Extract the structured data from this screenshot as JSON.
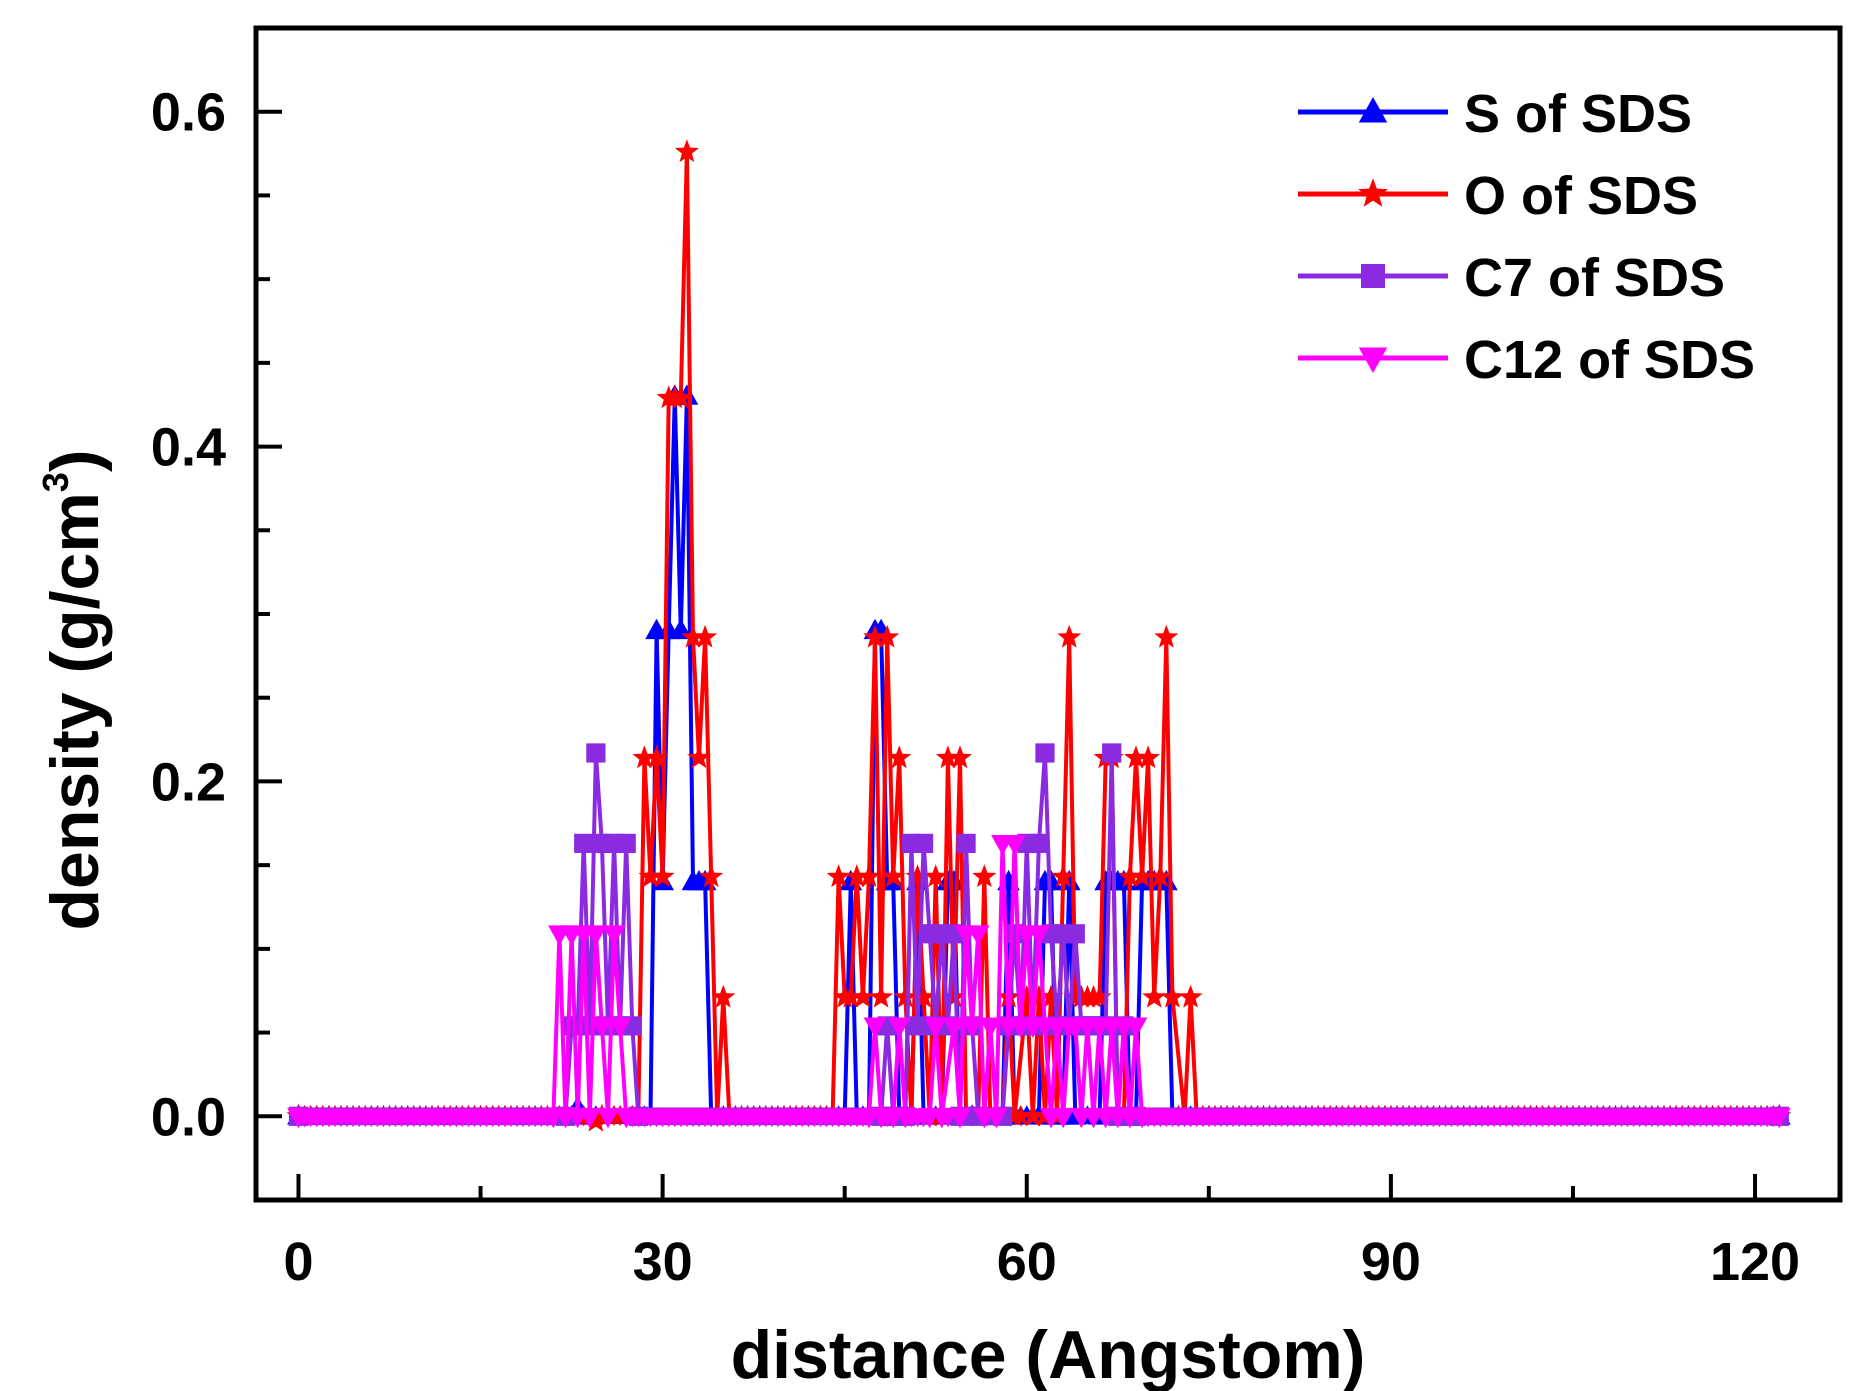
{
  "chart_data": {
    "type": "line",
    "title": "",
    "xlabel": "distance (Angstom)",
    "ylabel": {
      "main": "density (g/cm",
      "superscript": "3",
      "close": ")"
    },
    "xlim": [
      -3.5,
      127
    ],
    "ylim": [
      -0.05,
      0.65
    ],
    "xticks": [
      0,
      30,
      60,
      90,
      120
    ],
    "xtick_labels": [
      "0",
      "30",
      "60",
      "90",
      "120"
    ],
    "yticks": [
      0.0,
      0.2,
      0.4,
      0.6
    ],
    "ytick_labels": [
      "0.0",
      "0.2",
      "0.4",
      "0.6"
    ],
    "legend_position": "top-right",
    "series": [
      {
        "name": "S of SDS",
        "color": "#0000ff",
        "marker": "triangle-up",
        "points": [
          [
            0,
            0
          ],
          [
            22,
            0
          ],
          [
            23,
            0.005
          ],
          [
            24,
            0
          ],
          [
            29,
            0
          ],
          [
            29.5,
            0.29
          ],
          [
            30,
            0.14
          ],
          [
            30.5,
            0.29
          ],
          [
            31,
            0.43
          ],
          [
            31.5,
            0.29
          ],
          [
            32,
            0.43
          ],
          [
            32.5,
            0.14
          ],
          [
            33,
            0.14
          ],
          [
            33.5,
            0.14
          ],
          [
            34,
            0
          ],
          [
            45,
            0
          ],
          [
            45.5,
            0.14
          ],
          [
            46,
            0
          ],
          [
            47,
            0
          ],
          [
            47.5,
            0.29
          ],
          [
            48,
            0.29
          ],
          [
            48.5,
            0.14
          ],
          [
            49,
            0.14
          ],
          [
            49.5,
            0
          ],
          [
            50.5,
            0
          ],
          [
            51,
            0.14
          ],
          [
            51.5,
            0
          ],
          [
            53,
            0
          ],
          [
            53.5,
            0.14
          ],
          [
            54,
            0.14
          ],
          [
            54.5,
            0
          ],
          [
            55,
            0
          ],
          [
            55.5,
            0
          ],
          [
            56,
            0
          ],
          [
            58,
            0
          ],
          [
            58.5,
            0.14
          ],
          [
            59,
            0
          ],
          [
            61,
            0
          ],
          [
            61.5,
            0.14
          ],
          [
            62,
            0.14
          ],
          [
            62.5,
            0
          ],
          [
            63,
            0
          ],
          [
            63.5,
            0.14
          ],
          [
            64,
            0
          ],
          [
            66,
            0
          ],
          [
            66.5,
            0.14
          ],
          [
            67,
            0.14
          ],
          [
            67.5,
            0.14
          ],
          [
            68,
            0.14
          ],
          [
            68.5,
            0
          ],
          [
            69,
            0
          ],
          [
            69.5,
            0.14
          ],
          [
            70,
            0.14
          ],
          [
            70.5,
            0.14
          ],
          [
            71,
            0.14
          ],
          [
            71.5,
            0.14
          ],
          [
            72,
            0
          ],
          [
            122,
            0
          ]
        ]
      },
      {
        "name": "O of SDS",
        "color": "#ff0000",
        "marker": "star",
        "points": [
          [
            0,
            0
          ],
          [
            24,
            0
          ],
          [
            24.5,
            -0.003
          ],
          [
            25,
            0
          ],
          [
            28,
            0
          ],
          [
            28.5,
            0.214
          ],
          [
            29,
            0.143
          ],
          [
            29.5,
            0.214
          ],
          [
            30,
            0.143
          ],
          [
            30.5,
            0.429
          ],
          [
            31,
            0.429
          ],
          [
            31.5,
            0.429
          ],
          [
            32,
            0.576
          ],
          [
            32.5,
            0.286
          ],
          [
            33,
            0.214
          ],
          [
            33.5,
            0.286
          ],
          [
            34,
            0.143
          ],
          [
            34.5,
            0
          ],
          [
            35,
            0.071
          ],
          [
            35.5,
            0
          ],
          [
            44,
            0
          ],
          [
            44.5,
            0.143
          ],
          [
            45,
            0.071
          ],
          [
            45.5,
            0.071
          ],
          [
            46,
            0.143
          ],
          [
            46.5,
            0.071
          ],
          [
            47,
            0.143
          ],
          [
            47.5,
            0.286
          ],
          [
            48,
            0.071
          ],
          [
            48.5,
            0.286
          ],
          [
            49,
            0.143
          ],
          [
            49.5,
            0.214
          ],
          [
            50,
            0.071
          ],
          [
            50.5,
            0
          ],
          [
            51,
            0.143
          ],
          [
            51.5,
            0.071
          ],
          [
            52,
            0
          ],
          [
            52.5,
            0.143
          ],
          [
            53,
            0
          ],
          [
            53.5,
            0.214
          ],
          [
            54,
            0.071
          ],
          [
            54.5,
            0.214
          ],
          [
            55,
            0
          ],
          [
            56,
            0
          ],
          [
            56.5,
            0.143
          ],
          [
            57,
            0
          ],
          [
            58,
            0
          ],
          [
            58.5,
            0.071
          ],
          [
            59,
            0
          ],
          [
            60,
            0.071
          ],
          [
            60.5,
            0
          ],
          [
            61,
            0.071
          ],
          [
            61.5,
            0
          ],
          [
            62,
            0.071
          ],
          [
            62.5,
            0
          ],
          [
            63,
            0.143
          ],
          [
            63.5,
            0.286
          ],
          [
            64,
            0.071
          ],
          [
            64.5,
            0.071
          ],
          [
            65,
            0.071
          ],
          [
            65.5,
            0.071
          ],
          [
            66,
            0.071
          ],
          [
            66.5,
            0.214
          ],
          [
            67,
            0.214
          ],
          [
            67.5,
            0
          ],
          [
            68,
            0
          ],
          [
            68.5,
            0.143
          ],
          [
            69,
            0.214
          ],
          [
            69.5,
            0.143
          ],
          [
            70,
            0.214
          ],
          [
            70.5,
            0.071
          ],
          [
            71,
            0.143
          ],
          [
            71.5,
            0.286
          ],
          [
            72,
            0.071
          ],
          [
            73,
            0
          ],
          [
            73.5,
            0.071
          ],
          [
            74,
            0
          ],
          [
            122,
            0
          ]
        ]
      },
      {
        "name": "C7 of SDS",
        "color": "#8a2be2",
        "marker": "square",
        "points": [
          [
            0,
            0
          ],
          [
            22,
            0
          ],
          [
            22.5,
            0.054
          ],
          [
            23,
            0.054
          ],
          [
            23.5,
            0.163
          ],
          [
            24,
            0.054
          ],
          [
            24.5,
            0.217
          ],
          [
            25,
            0.163
          ],
          [
            25.5,
            0.054
          ],
          [
            26,
            0.163
          ],
          [
            26.5,
            0.054
          ],
          [
            27,
            0.163
          ],
          [
            27.5,
            0.054
          ],
          [
            28,
            0
          ],
          [
            48,
            0
          ],
          [
            48.5,
            0.054
          ],
          [
            49,
            0
          ],
          [
            50,
            0
          ],
          [
            50.5,
            0.163
          ],
          [
            51,
            0.054
          ],
          [
            51.5,
            0.163
          ],
          [
            52,
            0.109
          ],
          [
            52.5,
            0.054
          ],
          [
            53,
            0.109
          ],
          [
            53.5,
            0.054
          ],
          [
            54,
            0.109
          ],
          [
            54.5,
            0
          ],
          [
            55,
            0.163
          ],
          [
            55.5,
            0.054
          ],
          [
            56,
            0
          ],
          [
            58,
            0
          ],
          [
            58.5,
            0.054
          ],
          [
            59,
            0.109
          ],
          [
            59.5,
            0.054
          ],
          [
            60,
            0.163
          ],
          [
            60.5,
            0.054
          ],
          [
            61,
            0.163
          ],
          [
            61.5,
            0.217
          ],
          [
            62,
            0.109
          ],
          [
            62.5,
            0.054
          ],
          [
            63,
            0.109
          ],
          [
            63.5,
            0.054
          ],
          [
            64,
            0.109
          ],
          [
            64.5,
            0.054
          ],
          [
            65,
            0.054
          ],
          [
            65.5,
            0.054
          ],
          [
            66,
            0.054
          ],
          [
            66.5,
            0.054
          ],
          [
            67,
            0.217
          ],
          [
            67.5,
            0
          ],
          [
            68,
            0.054
          ],
          [
            68.5,
            0
          ],
          [
            69,
            0
          ],
          [
            122,
            0
          ]
        ]
      },
      {
        "name": "C12 of SDS",
        "color": "#ff00ff",
        "marker": "triangle-down",
        "points": [
          [
            0,
            0
          ],
          [
            21,
            0
          ],
          [
            21.5,
            0.109
          ],
          [
            22,
            0
          ],
          [
            22.5,
            0.109
          ],
          [
            23,
            0
          ],
          [
            23.5,
            0.109
          ],
          [
            24,
            0
          ],
          [
            24.5,
            0.109
          ],
          [
            25,
            0.054
          ],
          [
            25.5,
            0
          ],
          [
            26,
            0.109
          ],
          [
            26.5,
            0.054
          ],
          [
            27,
            0
          ],
          [
            47,
            0
          ],
          [
            47.5,
            0.054
          ],
          [
            48,
            0
          ],
          [
            49,
            0
          ],
          [
            49.5,
            0.054
          ],
          [
            50,
            0
          ],
          [
            52,
            0
          ],
          [
            52.5,
            0.054
          ],
          [
            53,
            0
          ],
          [
            54,
            0.054
          ],
          [
            54.5,
            0
          ],
          [
            55,
            0.109
          ],
          [
            55.5,
            0.054
          ],
          [
            56,
            0.109
          ],
          [
            56.5,
            0
          ],
          [
            57,
            0.054
          ],
          [
            57.5,
            0
          ],
          [
            58,
            0.163
          ],
          [
            58.5,
            0.054
          ],
          [
            59,
            0.163
          ],
          [
            59.5,
            0.054
          ],
          [
            60,
            0.109
          ],
          [
            60.5,
            0.054
          ],
          [
            61,
            0.109
          ],
          [
            61.5,
            0.054
          ],
          [
            62,
            0
          ],
          [
            62.5,
            0.054
          ],
          [
            63,
            0
          ],
          [
            63.5,
            0.054
          ],
          [
            64,
            0.054
          ],
          [
            64.5,
            0
          ],
          [
            65,
            0.054
          ],
          [
            65.5,
            0
          ],
          [
            66,
            0.054
          ],
          [
            66.5,
            0
          ],
          [
            67,
            0.054
          ],
          [
            67.5,
            0
          ],
          [
            68,
            0.054
          ],
          [
            68.5,
            0
          ],
          [
            69,
            0.054
          ],
          [
            69.5,
            0
          ],
          [
            122,
            0
          ]
        ]
      }
    ]
  }
}
